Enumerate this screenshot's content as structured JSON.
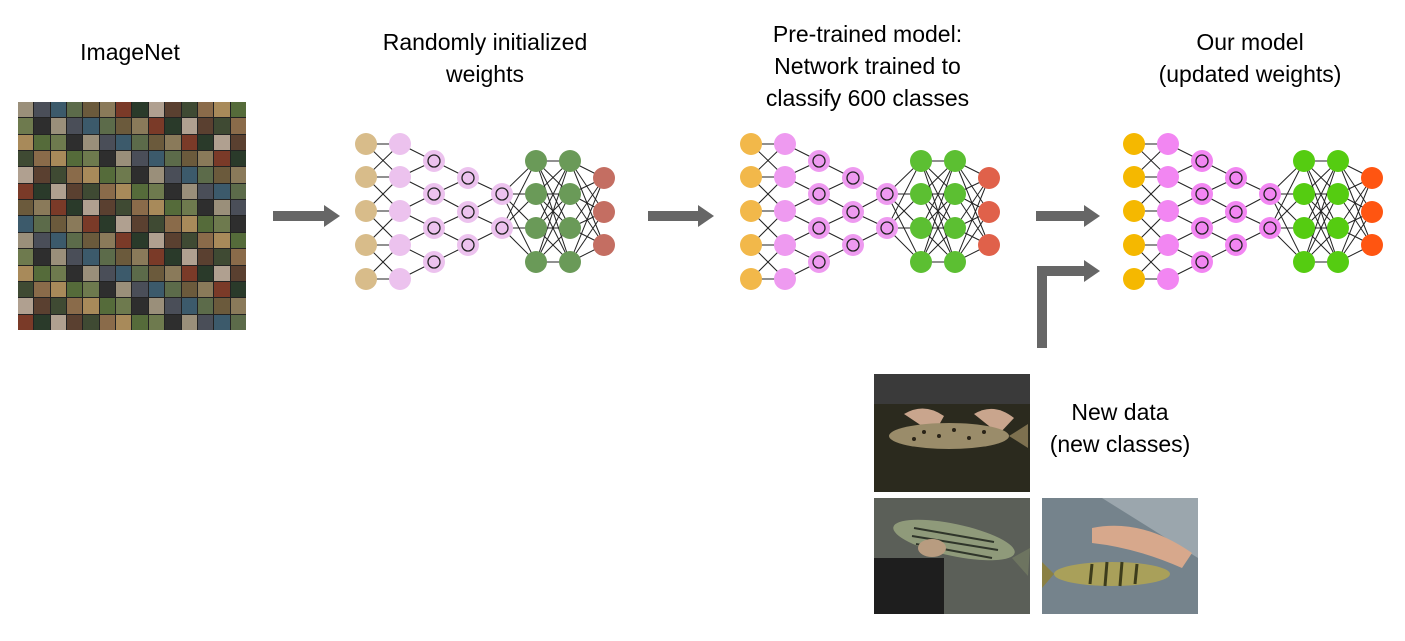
{
  "labels": {
    "imagenet": "ImageNet",
    "random": "Randomly initialized\nweights",
    "pretrained": "Pre-trained model:\nNetwork trained to\nclassify 600 classes",
    "ours": "Our model\n(updated weights)",
    "newdata": "New data\n(new classes)"
  },
  "networks": [
    {
      "name": "random-init-network",
      "colors": {
        "input": "#d8bc8a",
        "hidden": "#ecc2ee",
        "dense": "#6a9a58",
        "output": "#c46e62"
      }
    },
    {
      "name": "pretrained-network",
      "colors": {
        "input": "#f2b84a",
        "hidden": "#ee9af0",
        "dense": "#5cbf32",
        "output": "#e0614a"
      }
    },
    {
      "name": "our-model-network",
      "colors": {
        "input": "#f5b800",
        "hidden": "#f286f2",
        "dense": "#55cc11",
        "output": "#ff5511"
      }
    }
  ],
  "arrow_color": "#666666",
  "photos": [
    {
      "name": "brown-trout-photo"
    },
    {
      "name": "striped-bass-photo"
    },
    {
      "name": "yellow-perch-photo"
    }
  ]
}
